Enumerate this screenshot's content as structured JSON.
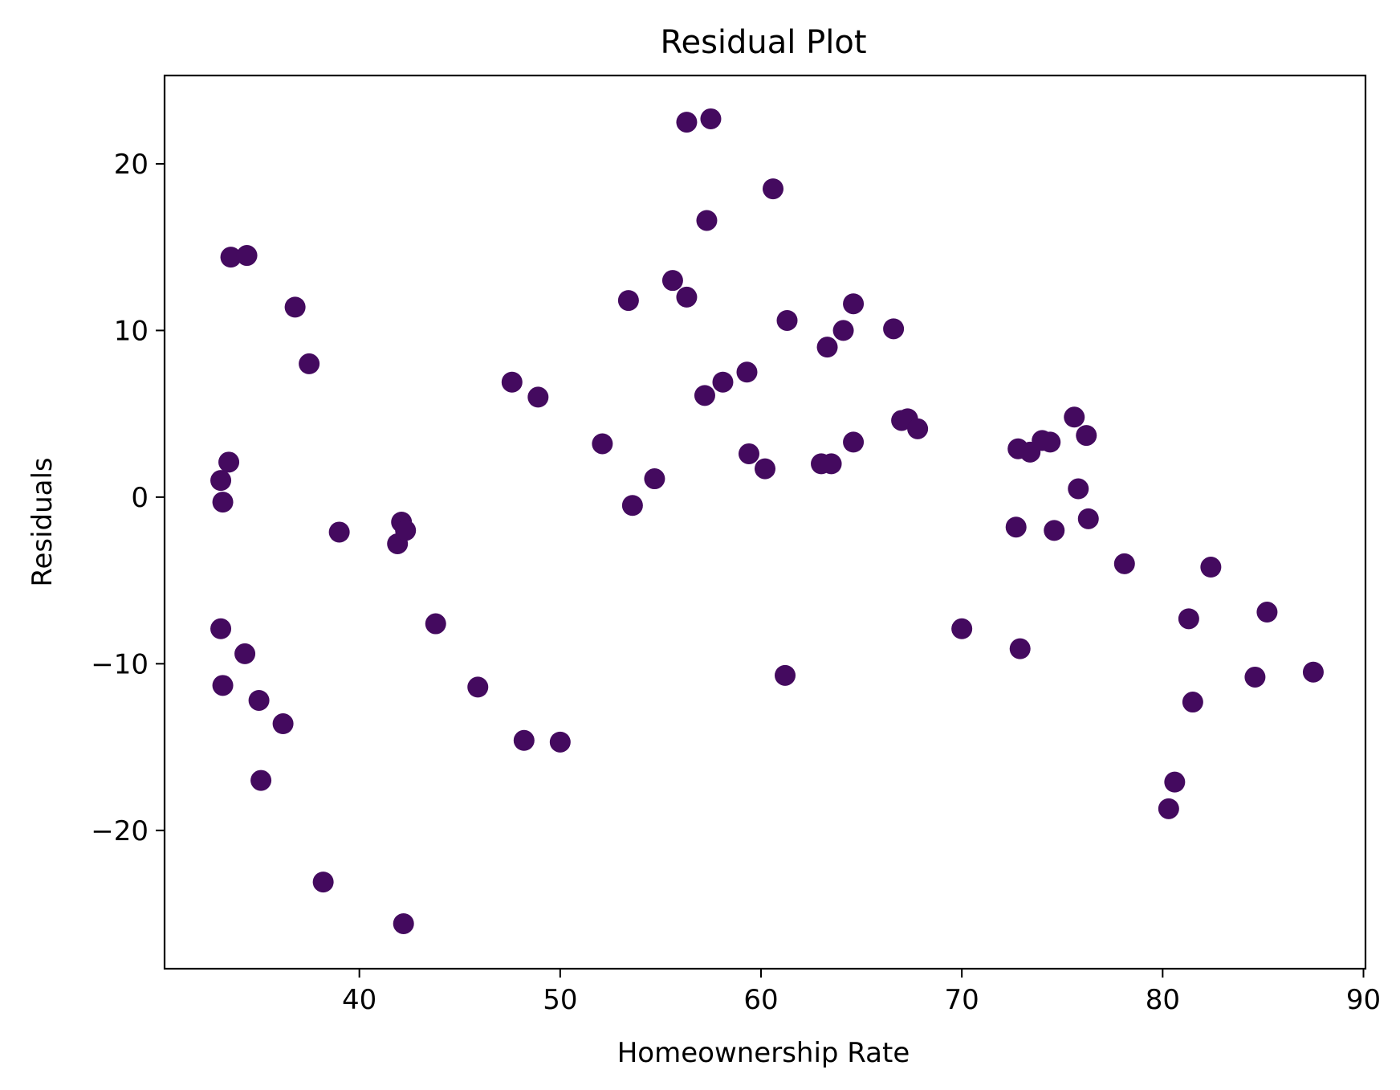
{
  "chart_data": {
    "type": "scatter",
    "title": "Residual Plot",
    "xlabel": "Homeownership Rate",
    "ylabel": "Residuals",
    "xlim": [
      30.3,
      90.1
    ],
    "ylim": [
      -28.3,
      25.3
    ],
    "xticks": [
      40,
      50,
      60,
      70,
      80,
      90
    ],
    "yticks": [
      -20,
      -10,
      0,
      10,
      20
    ],
    "xtick_labels": [
      "40",
      "50",
      "60",
      "70",
      "80",
      "90"
    ],
    "ytick_labels": [
      "−20",
      "−10",
      "0",
      "10",
      "20"
    ],
    "grid": false,
    "marker_color": "#440a5f",
    "series": [
      {
        "points": [
          [
            33.1,
            1.0
          ],
          [
            33.2,
            -0.3
          ],
          [
            33.5,
            2.1
          ],
          [
            33.6,
            14.4
          ],
          [
            34.4,
            14.5
          ],
          [
            33.1,
            -7.9
          ],
          [
            33.2,
            -11.3
          ],
          [
            34.3,
            -9.4
          ],
          [
            35.0,
            -12.2
          ],
          [
            35.1,
            -17.0
          ],
          [
            36.2,
            -13.6
          ],
          [
            36.8,
            11.4
          ],
          [
            37.5,
            8.0
          ],
          [
            38.2,
            -23.1
          ],
          [
            39.0,
            -2.1
          ],
          [
            41.9,
            -2.8
          ],
          [
            42.1,
            -1.5
          ],
          [
            42.3,
            -2.0
          ],
          [
            42.2,
            -25.6
          ],
          [
            43.8,
            -7.6
          ],
          [
            45.9,
            -11.4
          ],
          [
            47.6,
            6.9
          ],
          [
            48.2,
            -14.6
          ],
          [
            48.9,
            6.0
          ],
          [
            50.0,
            -14.7
          ],
          [
            52.1,
            3.2
          ],
          [
            53.4,
            11.8
          ],
          [
            53.6,
            -0.5
          ],
          [
            54.7,
            1.1
          ],
          [
            55.6,
            13.0
          ],
          [
            56.3,
            12.0
          ],
          [
            56.3,
            22.5
          ],
          [
            57.2,
            6.1
          ],
          [
            57.3,
            16.6
          ],
          [
            57.5,
            22.7
          ],
          [
            58.1,
            6.9
          ],
          [
            59.3,
            7.5
          ],
          [
            59.4,
            2.6
          ],
          [
            60.2,
            1.7
          ],
          [
            60.6,
            18.5
          ],
          [
            61.3,
            10.6
          ],
          [
            61.2,
            -10.7
          ],
          [
            63.0,
            2.0
          ],
          [
            63.3,
            9.0
          ],
          [
            63.5,
            2.0
          ],
          [
            64.1,
            10.0
          ],
          [
            64.6,
            11.6
          ],
          [
            64.6,
            3.3
          ],
          [
            66.6,
            10.1
          ],
          [
            67.0,
            4.6
          ],
          [
            67.3,
            4.7
          ],
          [
            67.8,
            4.1
          ],
          [
            70.0,
            -7.9
          ],
          [
            72.7,
            -1.8
          ],
          [
            72.8,
            2.9
          ],
          [
            72.9,
            -9.1
          ],
          [
            73.4,
            2.7
          ],
          [
            74.0,
            3.4
          ],
          [
            74.4,
            3.3
          ],
          [
            74.6,
            -2.0
          ],
          [
            75.6,
            4.8
          ],
          [
            75.8,
            0.5
          ],
          [
            76.2,
            3.7
          ],
          [
            76.3,
            -1.3
          ],
          [
            78.1,
            -4.0
          ],
          [
            80.3,
            -18.7
          ],
          [
            80.6,
            -17.1
          ],
          [
            81.3,
            -7.3
          ],
          [
            81.5,
            -12.3
          ],
          [
            82.4,
            -4.2
          ],
          [
            84.6,
            -10.8
          ],
          [
            85.2,
            -6.9
          ],
          [
            87.5,
            -10.5
          ]
        ]
      }
    ]
  }
}
